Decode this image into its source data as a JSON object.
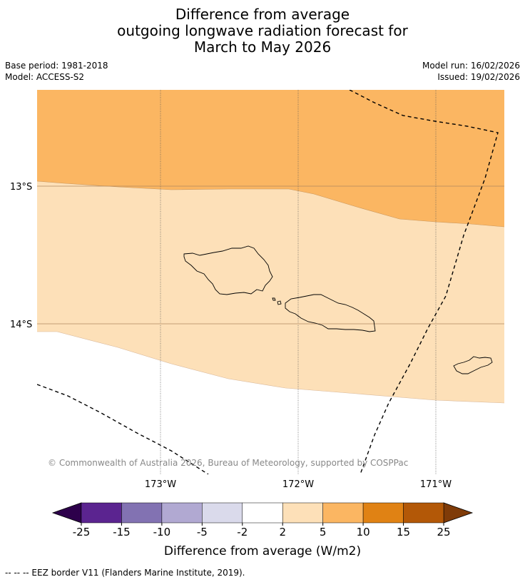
{
  "title": {
    "line1": "Difference from average",
    "line2": "outgoing longwave radiation forecast for",
    "line3": "March to May 2026"
  },
  "meta": {
    "base_period": "Base period: 1981-2018",
    "model": "Model: ACCESS-S2",
    "model_run": "Model run: 16/02/2026",
    "issued": "Issued: 19/02/2026"
  },
  "map": {
    "lat_labels": [
      "13°S",
      "14°S"
    ],
    "lon_labels": [
      "173°W",
      "172°W",
      "171°W"
    ],
    "copyright": "© Commonwealth of Australia 2026, Bureau of Meteorology, supported by COSPPac",
    "fill_colors": {
      "band_5_10": "#fbb662",
      "band_2_5": "#fde0b8",
      "band_neutral": "#ffffff"
    }
  },
  "colorbar": {
    "label": "Difference from average (W/m2)",
    "ticks": [
      "-25",
      "-15",
      "-10",
      "-5",
      "-2",
      "2",
      "5",
      "10",
      "15",
      "25"
    ],
    "colors": [
      "#5b2490",
      "#8272b2",
      "#b1a9d2",
      "#dadaeb",
      "#ffffff",
      "#fde0b8",
      "#fbb662",
      "#e08214",
      "#b35807"
    ],
    "extend_low_color": "#2d004b",
    "extend_high_color": "#7f3b08"
  },
  "footer": {
    "legend_text": "--  --  -- EEZ border V11 (Flanders Marine Institute, 2019)."
  }
}
